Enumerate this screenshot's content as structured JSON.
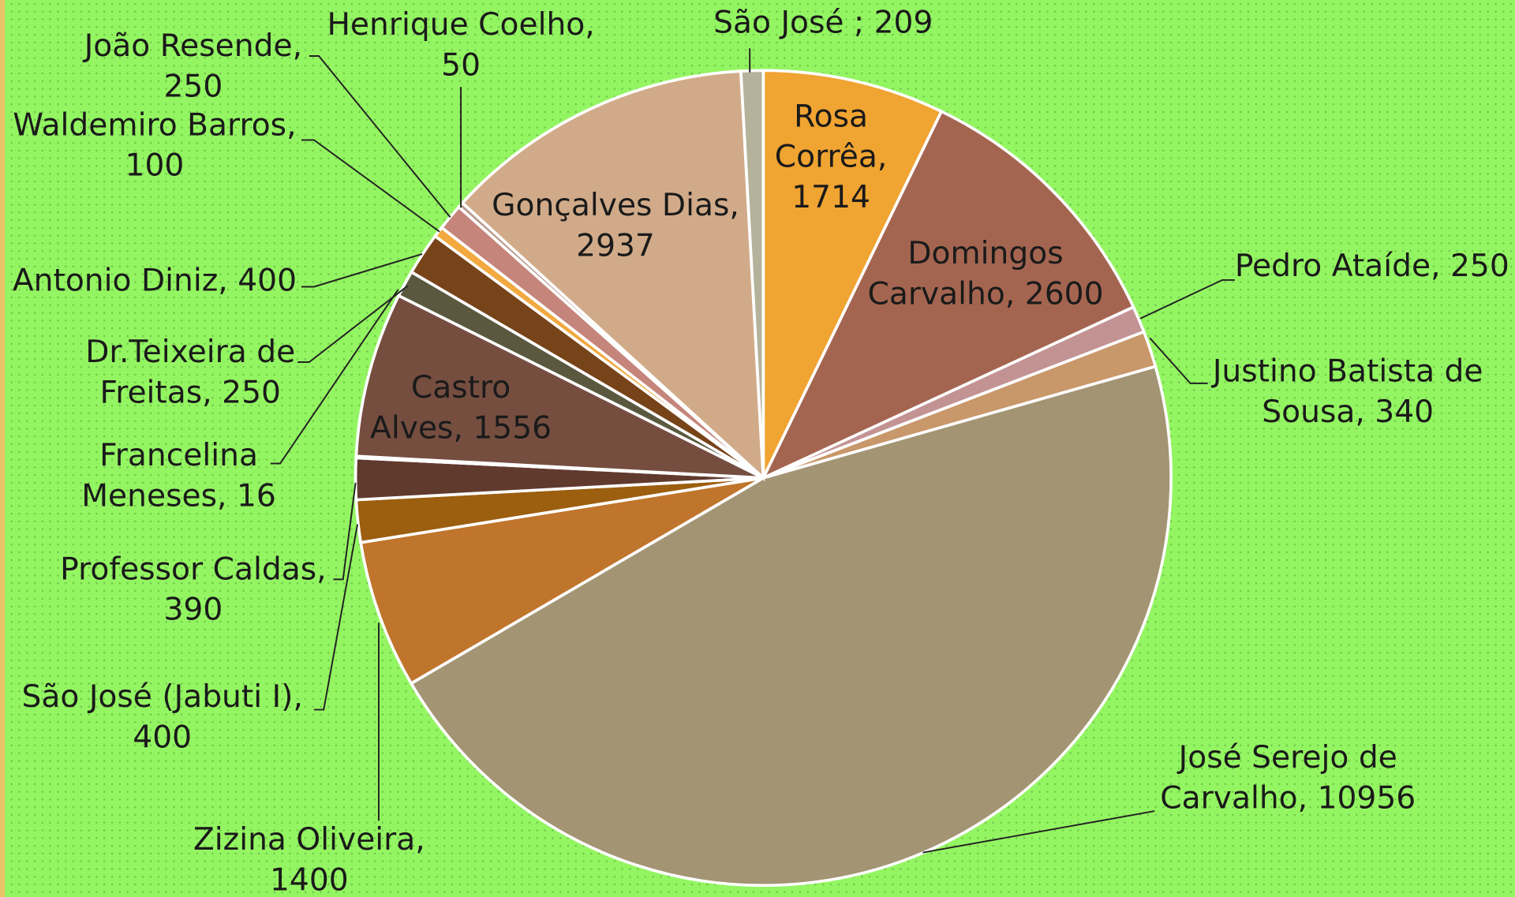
{
  "chart_data": {
    "type": "pie",
    "labels": [
      "Rosa Corrêa, 1714",
      "Domingos Carvalho, 2600",
      "Pedro Ataíde, 250",
      "Justino Batista de Sousa, 340",
      "José Serejo de Carvalho, 10956",
      "Zizina Oliveira, 1400",
      "São José (Jabuti I), 400",
      "Professor Caldas, 390",
      "Francelina Meneses, 16",
      "Castro Alves, 1556",
      "Dr.Teixeira de Freitas, 250",
      "Antonio Diniz, 400",
      "Waldemiro Barros, 100",
      "João Resende, 250",
      "Henrique Coelho, 50",
      "Gonçalves Dias, 2937",
      "São José ; 209"
    ],
    "values": [
      1714,
      2600,
      250,
      340,
      10956,
      1400,
      400,
      390,
      16,
      1556,
      250,
      400,
      100,
      250,
      50,
      2937,
      209
    ],
    "colors": [
      "#f0a431",
      "#a46550",
      "#c39393",
      "#c8976a",
      "#a39473",
      "#c0752c",
      "#9c5e0f",
      "#613a2e",
      "#8a6d55",
      "#754e40",
      "#5a5940",
      "#774318",
      "#f1a940",
      "#c5857b",
      "#b89a8d",
      "#d1ab89",
      "#b4b29a"
    ]
  }
}
